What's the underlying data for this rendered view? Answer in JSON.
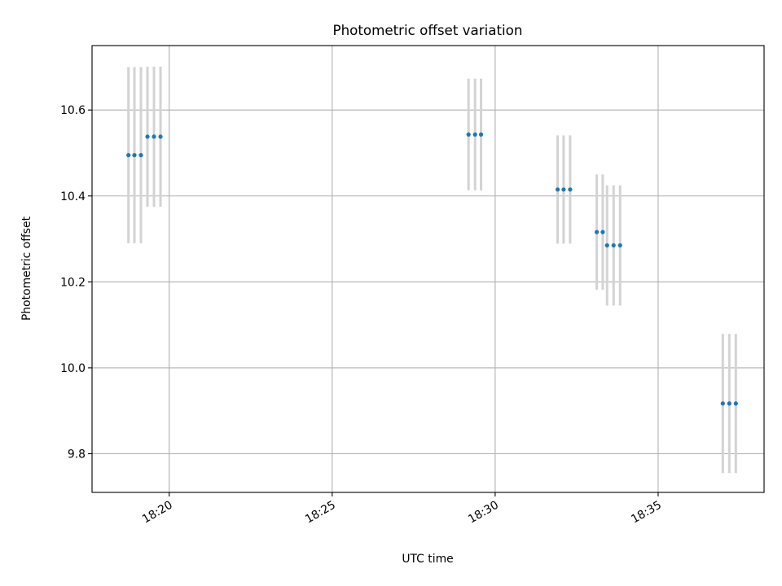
{
  "chart_data": {
    "type": "scatter",
    "title": "Photometric offset variation",
    "xlabel": "UTC time",
    "ylabel": "Photometric offset",
    "x_ticks": [
      "18:20",
      "18:25",
      "18:30",
      "18:35"
    ],
    "y_ticks": [
      "9.8",
      "10.0",
      "10.2",
      "10.4",
      "10.6"
    ],
    "xlim": [
      "18:17:38",
      "18:38:15"
    ],
    "ylim": [
      9.71,
      10.75
    ],
    "grid": true,
    "error_bar_color": "#d3d3d3",
    "point_color": "#1f77b4",
    "points": [
      {
        "x": "18:18:45",
        "y": 10.495,
        "yerr": 0.205
      },
      {
        "x": "18:18:56",
        "y": 10.495,
        "yerr": 0.205
      },
      {
        "x": "18:19:08",
        "y": 10.495,
        "yerr": 0.205
      },
      {
        "x": "18:19:20",
        "y": 10.538,
        "yerr": 0.163
      },
      {
        "x": "18:19:32",
        "y": 10.538,
        "yerr": 0.163
      },
      {
        "x": "18:19:44",
        "y": 10.538,
        "yerr": 0.163
      },
      {
        "x": "18:29:11",
        "y": 10.543,
        "yerr": 0.13
      },
      {
        "x": "18:29:23",
        "y": 10.543,
        "yerr": 0.13
      },
      {
        "x": "18:29:34",
        "y": 10.543,
        "yerr": 0.13
      },
      {
        "x": "18:31:55",
        "y": 10.415,
        "yerr": 0.126
      },
      {
        "x": "18:32:06",
        "y": 10.415,
        "yerr": 0.126
      },
      {
        "x": "18:32:18",
        "y": 10.415,
        "yerr": 0.126
      },
      {
        "x": "18:33:07",
        "y": 10.316,
        "yerr": 0.134
      },
      {
        "x": "18:33:18",
        "y": 10.316,
        "yerr": 0.134
      },
      {
        "x": "18:33:26",
        "y": 10.285,
        "yerr": 0.14
      },
      {
        "x": "18:33:38",
        "y": 10.285,
        "yerr": 0.14
      },
      {
        "x": "18:33:50",
        "y": 10.285,
        "yerr": 0.14
      },
      {
        "x": "18:36:59",
        "y": 9.917,
        "yerr": 0.162
      },
      {
        "x": "18:37:11",
        "y": 9.917,
        "yerr": 0.162
      },
      {
        "x": "18:37:23",
        "y": 9.917,
        "yerr": 0.162
      }
    ]
  }
}
